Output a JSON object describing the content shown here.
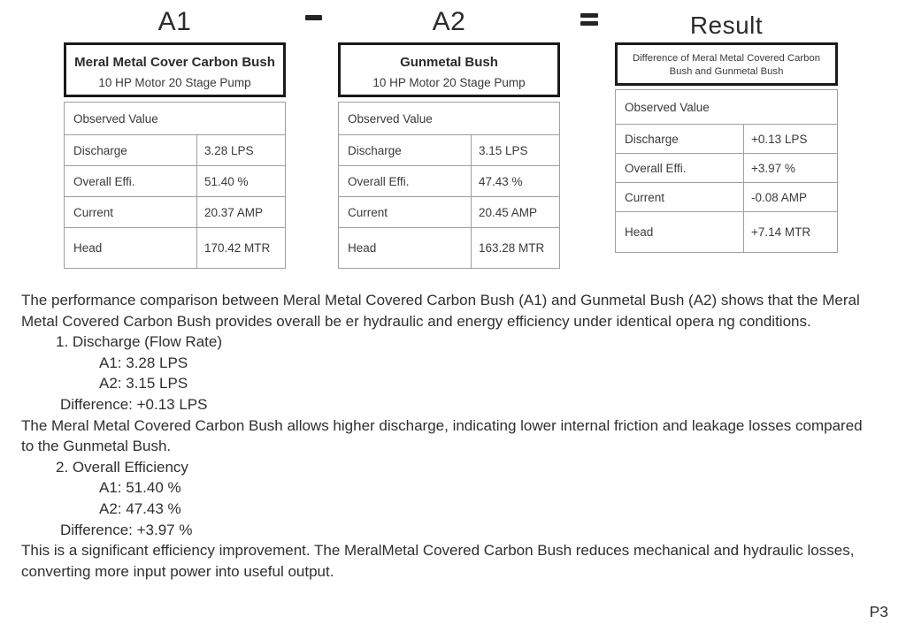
{
  "page": {
    "page_number": "P3",
    "colors": {
      "header_box_border": "#1a1a1a",
      "grid_line": "#9e9e9e",
      "text": "#333333",
      "background": "#ffffff"
    },
    "operators": {
      "minus": "-",
      "equals": "="
    }
  },
  "tables": [
    {
      "title": "A1",
      "header_line1": "Meral Metal Cover Carbon Bush",
      "header_line2": "10 HP Motor 20 Stage Pump",
      "section_label": "Observed Value",
      "rows": [
        {
          "label": "Discharge",
          "value": "3.28 LPS"
        },
        {
          "label": "Overall Effi.",
          "value": "51.40 %"
        },
        {
          "label": "Current",
          "value": "20.37 AMP"
        },
        {
          "label": "Head",
          "value": "170.42 MTR"
        }
      ]
    },
    {
      "title": "A2",
      "header_line1": "Gunmetal Bush",
      "header_line2": "10 HP Motor 20 Stage Pump",
      "section_label": "Observed Value",
      "rows": [
        {
          "label": "Discharge",
          "value": "3.15 LPS"
        },
        {
          "label": "Overall Effi.",
          "value": "47.43 %"
        },
        {
          "label": "Current",
          "value": "20.45 AMP"
        },
        {
          "label": "Head",
          "value": "163.28 MTR"
        }
      ]
    },
    {
      "title": "Result",
      "header_line1": "Difference of Meral Metal Covered Carbon",
      "header_line2": "Bush and Gunmetal Bush",
      "section_label": "Observed Value",
      "rows": [
        {
          "label": "Discharge",
          "value": "+0.13 LPS"
        },
        {
          "label": "Overall Effi.",
          "value": "+3.97 %"
        },
        {
          "label": "Current",
          "value": "-0.08 AMP"
        },
        {
          "label": "Head",
          "value": "+7.14 MTR"
        }
      ]
    }
  ],
  "body": {
    "lines": [
      {
        "text": "The performance comparison between Meral Metal Covered Carbon Bush (A1) and Gunmetal Bush (A2) shows that the Meral"
      },
      {
        "text": "Metal Covered Carbon Bush provides overall be er hydraulic and energy efficiency under identical opera ng conditions."
      },
      {
        "text": "1. Discharge (Flow Rate)"
      },
      {
        "text": "A1: 3.28 LPS"
      },
      {
        "text": "A2: 3.15 LPS"
      },
      {
        "text": "Difference: +0.13 LPS"
      },
      {
        "text": "The Meral Metal Covered Carbon Bush allows higher discharge, indicating lower internal friction and leakage losses compared"
      },
      {
        "text": "to the Gunmetal Bush."
      },
      {
        "text": "2. Overall Efficiency"
      },
      {
        "text": "A1: 51.40 %"
      },
      {
        "text": "A2: 47.43 %"
      },
      {
        "text": "Difference: +3.97 %"
      },
      {
        "text": "This is a significant efficiency improvement. The MeralMetal Covered Carbon Bush reduces mechanical and hydraulic losses,"
      },
      {
        "text": "converting more input power into useful output."
      }
    ]
  }
}
